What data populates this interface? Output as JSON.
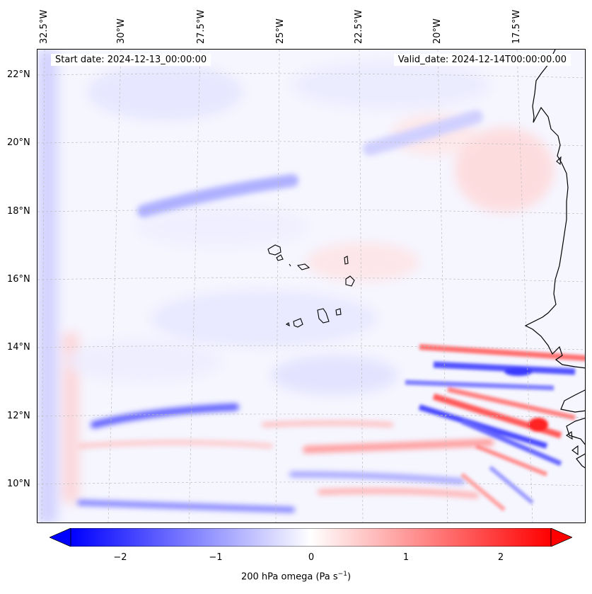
{
  "map": {
    "start_label": "Start date: 2024-12-13_00:00:00",
    "valid_label": "Valid_date: 2024-12-14T00:00:00.00",
    "lon_labels": [
      "32.5°W",
      "30°W",
      "27.5°W",
      "25°W",
      "22.5°W",
      "20°W",
      "17.5°W"
    ],
    "lat_labels": [
      "22°N",
      "20°N",
      "18°N",
      "16°N",
      "14°N",
      "12°N",
      "10°N"
    ],
    "field": "200 hPa omega",
    "colors": {
      "negative": "#0000ff",
      "neutral": "#ffffff",
      "positive": "#ff0000",
      "coast": "#000000"
    }
  },
  "colorbar": {
    "ticks": [
      "−2",
      "−1",
      "0",
      "1",
      "2"
    ],
    "label": "200 hPa omega (Pa s",
    "label_exp": "−1",
    "label_close": ")",
    "range": [
      -2.75,
      2.75
    ]
  }
}
